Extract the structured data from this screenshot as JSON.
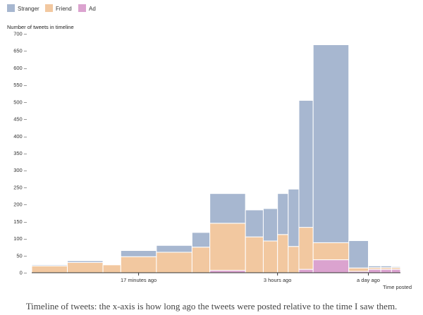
{
  "chart_data": {
    "type": "bar",
    "stacked": true,
    "variable_width": true,
    "title": "Number of tweets in timeline",
    "xlabel": "Time posted",
    "ylabel": "Number of tweets in timeline",
    "ylim": [
      0,
      700
    ],
    "yticks": [
      0,
      50,
      100,
      150,
      200,
      250,
      300,
      350,
      400,
      450,
      500,
      550,
      600,
      650,
      700
    ],
    "xticks": [
      {
        "label": "17 minutes ago",
        "bin": 3.5
      },
      {
        "label": "3 hours ago",
        "bin": 9
      },
      {
        "label": "a day ago",
        "bin": 14
      }
    ],
    "legend_position": "top-left",
    "series": [
      {
        "name": "Stranger",
        "color": "#a7b7d0"
      },
      {
        "name": "Friend",
        "color": "#f2c8a0"
      },
      {
        "name": "Ad",
        "color": "#dba3cf"
      }
    ],
    "bins": [
      {
        "w": 2,
        "stranger": 3,
        "friend": 20,
        "ad": 0
      },
      {
        "w": 2,
        "stranger": 5,
        "friend": 30,
        "ad": 0
      },
      {
        "w": 1,
        "stranger": 0,
        "friend": 23,
        "ad": 0
      },
      {
        "w": 2,
        "stranger": 18,
        "friend": 47,
        "ad": 0
      },
      {
        "w": 2,
        "stranger": 20,
        "friend": 60,
        "ad": 0
      },
      {
        "w": 1,
        "stranger": 43,
        "friend": 75,
        "ad": 0
      },
      {
        "w": 2,
        "stranger": 87,
        "friend": 138,
        "ad": 7
      },
      {
        "w": 1,
        "stranger": 79,
        "friend": 105,
        "ad": 0
      },
      {
        "w": 0.8,
        "stranger": 95,
        "friend": 93,
        "ad": 0
      },
      {
        "w": 0.6,
        "stranger": 120,
        "friend": 112,
        "ad": 0
      },
      {
        "w": 0.6,
        "stranger": 168,
        "friend": 77,
        "ad": 0
      },
      {
        "w": 0.8,
        "stranger": 372,
        "friend": 123,
        "ad": 10
      },
      {
        "w": 2,
        "stranger": 580,
        "friend": 50,
        "ad": 38
      },
      {
        "w": 1.1,
        "stranger": 80,
        "friend": 10,
        "ad": 4
      },
      {
        "w": 0.7,
        "stranger": 5,
        "friend": 5,
        "ad": 10
      },
      {
        "w": 0.6,
        "stranger": 5,
        "friend": 5,
        "ad": 10
      },
      {
        "w": 0.5,
        "stranger": 3,
        "friend": 5,
        "ad": 10
      }
    ]
  },
  "caption": "Timeline of tweets: the x-axis is how long ago the tweets were posted relative to the time I saw them."
}
